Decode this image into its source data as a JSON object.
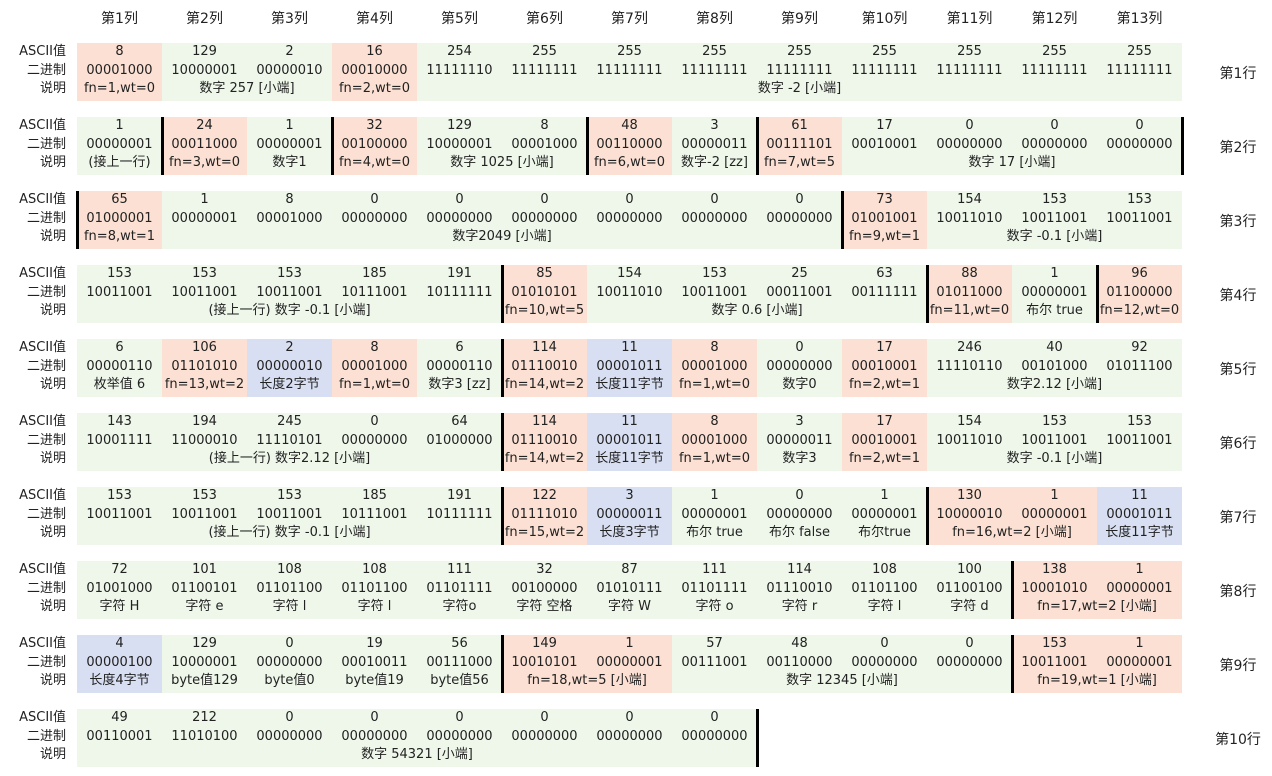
{
  "colors": {
    "base": "#eef7ea",
    "orange": "#fbe0d3",
    "blue": "#d9dff2",
    "border": "#000000"
  },
  "labels": {
    "ascii": "ASCII值",
    "binary": "二进制",
    "desc": "说明"
  },
  "columns": [
    "第1列",
    "第2列",
    "第3列",
    "第4列",
    "第5列",
    "第6列",
    "第7列",
    "第8列",
    "第9列",
    "第10列",
    "第11列",
    "第12列",
    "第13列"
  ],
  "rows": [
    {
      "label": "第1行",
      "bands": [
        {
          "start": 1,
          "end": 13
        }
      ],
      "cells": [
        {
          "ascii": "8",
          "binary": "00001000",
          "hl": "orange"
        },
        {
          "ascii": "129",
          "binary": "10000001"
        },
        {
          "ascii": "2",
          "binary": "00000010"
        },
        {
          "ascii": "16",
          "binary": "00010000",
          "hl": "orange"
        },
        {
          "ascii": "254",
          "binary": "11111110"
        },
        {
          "ascii": "255",
          "binary": "11111111"
        },
        {
          "ascii": "255",
          "binary": "11111111"
        },
        {
          "ascii": "255",
          "binary": "11111111"
        },
        {
          "ascii": "255",
          "binary": "11111111"
        },
        {
          "ascii": "255",
          "binary": "11111111"
        },
        {
          "ascii": "255",
          "binary": "11111111"
        },
        {
          "ascii": "255",
          "binary": "11111111"
        },
        {
          "ascii": "255",
          "binary": "11111111"
        }
      ],
      "descs": [
        {
          "text": "fn=1,wt=0",
          "start": 1,
          "end": 1
        },
        {
          "text": "数字 257 [小端]",
          "start": 2,
          "end": 3
        },
        {
          "text": "fn=2,wt=0",
          "start": 4,
          "end": 4
        },
        {
          "text": "数字 -2 [小端]",
          "start": 5,
          "end": 13
        }
      ],
      "bars": []
    },
    {
      "label": "第2行",
      "bands": [
        {
          "start": 1,
          "end": 13
        }
      ],
      "cells": [
        {
          "ascii": "1",
          "binary": "00000001"
        },
        {
          "ascii": "24",
          "binary": "00011000",
          "hl": "orange"
        },
        {
          "ascii": "1",
          "binary": "00000001"
        },
        {
          "ascii": "32",
          "binary": "00100000",
          "hl": "orange"
        },
        {
          "ascii": "129",
          "binary": "10000001"
        },
        {
          "ascii": "8",
          "binary": "00001000"
        },
        {
          "ascii": "48",
          "binary": "00110000",
          "hl": "orange"
        },
        {
          "ascii": "3",
          "binary": "00000011"
        },
        {
          "ascii": "61",
          "binary": "00111101",
          "hl": "orange"
        },
        {
          "ascii": "17",
          "binary": "00010001"
        },
        {
          "ascii": "0",
          "binary": "00000000"
        },
        {
          "ascii": "0",
          "binary": "00000000"
        },
        {
          "ascii": "0",
          "binary": "00000000"
        }
      ],
      "descs": [
        {
          "text": "(接上一行)",
          "start": 1,
          "end": 1
        },
        {
          "text": "fn=3,wt=0",
          "start": 2,
          "end": 2
        },
        {
          "text": "数字1",
          "start": 3,
          "end": 3
        },
        {
          "text": "fn=4,wt=0",
          "start": 4,
          "end": 4
        },
        {
          "text": "数字 1025 [小端]",
          "start": 5,
          "end": 6
        },
        {
          "text": "fn=6,wt=0",
          "start": 7,
          "end": 7
        },
        {
          "text": "数字-2 [zz]",
          "start": 8,
          "end": 8
        },
        {
          "text": "fn=7,wt=5",
          "start": 9,
          "end": 9
        },
        {
          "text": "数字 17 [小端]",
          "start": 10,
          "end": 13
        }
      ],
      "bars": [
        2,
        4,
        7,
        9,
        14
      ]
    },
    {
      "label": "第3行",
      "bands": [
        {
          "start": 1,
          "end": 13
        }
      ],
      "cells": [
        {
          "ascii": "65",
          "binary": "01000001",
          "hl": "orange"
        },
        {
          "ascii": "1",
          "binary": "00000001"
        },
        {
          "ascii": "8",
          "binary": "00001000"
        },
        {
          "ascii": "0",
          "binary": "00000000"
        },
        {
          "ascii": "0",
          "binary": "00000000"
        },
        {
          "ascii": "0",
          "binary": "00000000"
        },
        {
          "ascii": "0",
          "binary": "00000000"
        },
        {
          "ascii": "0",
          "binary": "00000000"
        },
        {
          "ascii": "0",
          "binary": "00000000"
        },
        {
          "ascii": "73",
          "binary": "01001001",
          "hl": "orange"
        },
        {
          "ascii": "154",
          "binary": "10011010"
        },
        {
          "ascii": "153",
          "binary": "10011001"
        },
        {
          "ascii": "153",
          "binary": "10011001"
        }
      ],
      "descs": [
        {
          "text": "fn=8,wt=1",
          "start": 1,
          "end": 1
        },
        {
          "text": "数字2049 [小端]",
          "start": 2,
          "end": 9
        },
        {
          "text": "fn=9,wt=1",
          "start": 10,
          "end": 10
        },
        {
          "text": "数字 -0.1 [小端]",
          "start": 11,
          "end": 13
        }
      ],
      "bars": [
        1,
        10
      ]
    },
    {
      "label": "第4行",
      "bands": [
        {
          "start": 1,
          "end": 13
        }
      ],
      "cells": [
        {
          "ascii": "153",
          "binary": "10011001"
        },
        {
          "ascii": "153",
          "binary": "10011001"
        },
        {
          "ascii": "153",
          "binary": "10011001"
        },
        {
          "ascii": "185",
          "binary": "10111001"
        },
        {
          "ascii": "191",
          "binary": "10111111"
        },
        {
          "ascii": "85",
          "binary": "01010101",
          "hl": "orange"
        },
        {
          "ascii": "154",
          "binary": "10011010"
        },
        {
          "ascii": "153",
          "binary": "10011001"
        },
        {
          "ascii": "25",
          "binary": "00011001"
        },
        {
          "ascii": "63",
          "binary": "00111111"
        },
        {
          "ascii": "88",
          "binary": "01011000",
          "hl": "orange"
        },
        {
          "ascii": "1",
          "binary": "00000001"
        },
        {
          "ascii": "96",
          "binary": "01100000",
          "hl": "orange"
        }
      ],
      "descs": [
        {
          "text": "(接上一行) 数字 -0.1 [小端]",
          "start": 1,
          "end": 5
        },
        {
          "text": "fn=10,wt=5",
          "start": 6,
          "end": 6
        },
        {
          "text": "数字 0.6 [小端]",
          "start": 7,
          "end": 10
        },
        {
          "text": "fn=11,wt=0",
          "start": 11,
          "end": 11
        },
        {
          "text": "布尔 true",
          "start": 12,
          "end": 12
        },
        {
          "text": "fn=12,wt=0",
          "start": 13,
          "end": 13
        }
      ],
      "bars": [
        6,
        11,
        13
      ]
    },
    {
      "label": "第5行",
      "bands": [
        {
          "start": 1,
          "end": 13
        }
      ],
      "cells": [
        {
          "ascii": "6",
          "binary": "00000110"
        },
        {
          "ascii": "106",
          "binary": "01101010",
          "hl": "orange"
        },
        {
          "ascii": "2",
          "binary": "00000010",
          "hl": "blue"
        },
        {
          "ascii": "8",
          "binary": "00001000",
          "hl": "orange"
        },
        {
          "ascii": "6",
          "binary": "00000110"
        },
        {
          "ascii": "114",
          "binary": "01110010",
          "hl": "orange"
        },
        {
          "ascii": "11",
          "binary": "00001011",
          "hl": "blue"
        },
        {
          "ascii": "8",
          "binary": "00001000",
          "hl": "orange"
        },
        {
          "ascii": "0",
          "binary": "00000000"
        },
        {
          "ascii": "17",
          "binary": "00010001",
          "hl": "orange"
        },
        {
          "ascii": "246",
          "binary": "11110110"
        },
        {
          "ascii": "40",
          "binary": "00101000"
        },
        {
          "ascii": "92",
          "binary": "01011100"
        }
      ],
      "descs": [
        {
          "text": "枚举值 6",
          "start": 1,
          "end": 1
        },
        {
          "text": "fn=13,wt=2",
          "start": 2,
          "end": 2
        },
        {
          "text": "长度2字节",
          "start": 3,
          "end": 3
        },
        {
          "text": "fn=1,wt=0",
          "start": 4,
          "end": 4
        },
        {
          "text": "数字3 [zz]",
          "start": 5,
          "end": 5
        },
        {
          "text": "fn=14,wt=2",
          "start": 6,
          "end": 6
        },
        {
          "text": "长度11字节",
          "start": 7,
          "end": 7
        },
        {
          "text": "fn=1,wt=0",
          "start": 8,
          "end": 8
        },
        {
          "text": "数字0",
          "start": 9,
          "end": 9
        },
        {
          "text": "fn=2,wt=1",
          "start": 10,
          "end": 10
        },
        {
          "text": "数字2.12 [小端]",
          "start": 11,
          "end": 13
        }
      ],
      "bars": [
        6
      ]
    },
    {
      "label": "第6行",
      "bands": [
        {
          "start": 1,
          "end": 13
        }
      ],
      "cells": [
        {
          "ascii": "143",
          "binary": "10001111"
        },
        {
          "ascii": "194",
          "binary": "11000010"
        },
        {
          "ascii": "245",
          "binary": "11110101"
        },
        {
          "ascii": "0",
          "binary": "00000000"
        },
        {
          "ascii": "64",
          "binary": "01000000"
        },
        {
          "ascii": "114",
          "binary": "01110010",
          "hl": "orange"
        },
        {
          "ascii": "11",
          "binary": "00001011",
          "hl": "blue"
        },
        {
          "ascii": "8",
          "binary": "00001000",
          "hl": "orange"
        },
        {
          "ascii": "3",
          "binary": "00000011"
        },
        {
          "ascii": "17",
          "binary": "00010001",
          "hl": "orange"
        },
        {
          "ascii": "154",
          "binary": "10011010"
        },
        {
          "ascii": "153",
          "binary": "10011001"
        },
        {
          "ascii": "153",
          "binary": "10011001"
        }
      ],
      "descs": [
        {
          "text": "(接上一行) 数字2.12 [小端]",
          "start": 1,
          "end": 5
        },
        {
          "text": "fn=14,wt=2",
          "start": 6,
          "end": 6
        },
        {
          "text": "长度11字节",
          "start": 7,
          "end": 7
        },
        {
          "text": "fn=1,wt=0",
          "start": 8,
          "end": 8
        },
        {
          "text": "数字3",
          "start": 9,
          "end": 9
        },
        {
          "text": "fn=2,wt=1",
          "start": 10,
          "end": 10
        },
        {
          "text": "数字 -0.1 [小端]",
          "start": 11,
          "end": 13
        }
      ],
      "bars": [
        6
      ]
    },
    {
      "label": "第7行",
      "bands": [
        {
          "start": 1,
          "end": 13
        }
      ],
      "cells": [
        {
          "ascii": "153",
          "binary": "10011001"
        },
        {
          "ascii": "153",
          "binary": "10011001"
        },
        {
          "ascii": "153",
          "binary": "10011001"
        },
        {
          "ascii": "185",
          "binary": "10111001"
        },
        {
          "ascii": "191",
          "binary": "10111111"
        },
        {
          "ascii": "122",
          "binary": "01111010",
          "hl": "orange"
        },
        {
          "ascii": "3",
          "binary": "00000011",
          "hl": "blue"
        },
        {
          "ascii": "1",
          "binary": "00000001"
        },
        {
          "ascii": "0",
          "binary": "00000000"
        },
        {
          "ascii": "1",
          "binary": "00000001"
        },
        {
          "ascii": "130",
          "binary": "10000010",
          "hl": "orange"
        },
        {
          "ascii": "1",
          "binary": "00000001",
          "hl": "orange"
        },
        {
          "ascii": "11",
          "binary": "00001011",
          "hl": "blue"
        }
      ],
      "descs": [
        {
          "text": "(接上一行) 数字 -0.1 [小端]",
          "start": 1,
          "end": 5
        },
        {
          "text": "fn=15,wt=2",
          "start": 6,
          "end": 6
        },
        {
          "text": "长度3字节",
          "start": 7,
          "end": 7
        },
        {
          "text": "布尔 true",
          "start": 8,
          "end": 8
        },
        {
          "text": "布尔 false",
          "start": 9,
          "end": 9
        },
        {
          "text": "布尔true",
          "start": 10,
          "end": 10
        },
        {
          "text": "fn=16,wt=2 [小端]",
          "start": 11,
          "end": 12
        },
        {
          "text": "长度11字节",
          "start": 13,
          "end": 13
        }
      ],
      "bars": [
        6,
        11
      ]
    },
    {
      "label": "第8行",
      "bands": [
        {
          "start": 1,
          "end": 13
        }
      ],
      "cells": [
        {
          "ascii": "72",
          "binary": "01001000"
        },
        {
          "ascii": "101",
          "binary": "01100101"
        },
        {
          "ascii": "108",
          "binary": "01101100"
        },
        {
          "ascii": "108",
          "binary": "01101100"
        },
        {
          "ascii": "111",
          "binary": "01101111"
        },
        {
          "ascii": "32",
          "binary": "00100000"
        },
        {
          "ascii": "87",
          "binary": "01010111"
        },
        {
          "ascii": "111",
          "binary": "01101111"
        },
        {
          "ascii": "114",
          "binary": "01110010"
        },
        {
          "ascii": "108",
          "binary": "01101100"
        },
        {
          "ascii": "100",
          "binary": "01100100"
        },
        {
          "ascii": "138",
          "binary": "10001010",
          "hl": "orange"
        },
        {
          "ascii": "1",
          "binary": "00000001",
          "hl": "orange"
        }
      ],
      "descs": [
        {
          "text": "字符 H",
          "start": 1,
          "end": 1
        },
        {
          "text": "字符 e",
          "start": 2,
          "end": 2
        },
        {
          "text": "字符 l",
          "start": 3,
          "end": 3
        },
        {
          "text": "字符 l",
          "start": 4,
          "end": 4
        },
        {
          "text": "字符o",
          "start": 5,
          "end": 5
        },
        {
          "text": "字符 空格",
          "start": 6,
          "end": 6
        },
        {
          "text": "字符 W",
          "start": 7,
          "end": 7
        },
        {
          "text": "字符 o",
          "start": 8,
          "end": 8
        },
        {
          "text": "字符 r",
          "start": 9,
          "end": 9
        },
        {
          "text": "字符 l",
          "start": 10,
          "end": 10
        },
        {
          "text": "字符 d",
          "start": 11,
          "end": 11
        },
        {
          "text": "fn=17,wt=2 [小端]",
          "start": 12,
          "end": 13
        }
      ],
      "bars": [
        12
      ]
    },
    {
      "label": "第9行",
      "bands": [
        {
          "start": 1,
          "end": 13
        }
      ],
      "cells": [
        {
          "ascii": "4",
          "binary": "00000100",
          "hl": "blue"
        },
        {
          "ascii": "129",
          "binary": "10000001"
        },
        {
          "ascii": "0",
          "binary": "00000000"
        },
        {
          "ascii": "19",
          "binary": "00010011"
        },
        {
          "ascii": "56",
          "binary": "00111000"
        },
        {
          "ascii": "149",
          "binary": "10010101",
          "hl": "orange"
        },
        {
          "ascii": "1",
          "binary": "00000001",
          "hl": "orange"
        },
        {
          "ascii": "57",
          "binary": "00111001"
        },
        {
          "ascii": "48",
          "binary": "00110000"
        },
        {
          "ascii": "0",
          "binary": "00000000"
        },
        {
          "ascii": "0",
          "binary": "00000000"
        },
        {
          "ascii": "153",
          "binary": "10011001",
          "hl": "orange"
        },
        {
          "ascii": "1",
          "binary": "00000001",
          "hl": "orange"
        }
      ],
      "descs": [
        {
          "text": "长度4字节",
          "start": 1,
          "end": 1
        },
        {
          "text": "byte值129",
          "start": 2,
          "end": 2
        },
        {
          "text": "byte值0",
          "start": 3,
          "end": 3
        },
        {
          "text": "byte值19",
          "start": 4,
          "end": 4
        },
        {
          "text": "byte值56",
          "start": 5,
          "end": 5
        },
        {
          "text": "fn=18,wt=5 [小端]",
          "start": 6,
          "end": 7
        },
        {
          "text": "数字 12345 [小端]",
          "start": 8,
          "end": 11
        },
        {
          "text": "fn=19,wt=1 [小端]",
          "start": 12,
          "end": 13
        }
      ],
      "bars": [
        6,
        12
      ]
    },
    {
      "label": "第10行",
      "bands": [
        {
          "start": 1,
          "end": 8
        }
      ],
      "cells": [
        {
          "ascii": "49",
          "binary": "00110001"
        },
        {
          "ascii": "212",
          "binary": "11010100"
        },
        {
          "ascii": "0",
          "binary": "00000000"
        },
        {
          "ascii": "0",
          "binary": "00000000"
        },
        {
          "ascii": "0",
          "binary": "00000000"
        },
        {
          "ascii": "0",
          "binary": "00000000"
        },
        {
          "ascii": "0",
          "binary": "00000000"
        },
        {
          "ascii": "0",
          "binary": "00000000"
        }
      ],
      "descs": [
        {
          "text": "数字 54321 [小端]",
          "start": 1,
          "end": 8
        }
      ],
      "bars": [
        9
      ]
    }
  ]
}
